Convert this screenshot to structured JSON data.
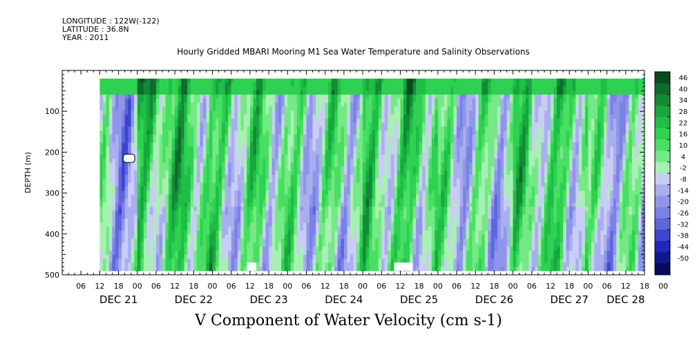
{
  "header": {
    "longitude": "LONGITUDE : 122W(-122)",
    "latitude": "LATITUDE : 36.8N",
    "year": "YEAR : 2011"
  },
  "title": "Hourly Gridded MBARI Mooring M1 Sea Water Temperature and Salinity Observations",
  "footer_title": "V Component of Water Velocity (cm s-1)",
  "chart_data": {
    "type": "heatmap",
    "title": "Hourly Gridded MBARI Mooring M1 Sea Water Temperature and Salinity Observations",
    "variable": "V Component of Water Velocity (cm s-1)",
    "ylabel": "DEPTH (m)",
    "ylim": [
      500,
      0
    ],
    "y_ticks": [
      100,
      200,
      300,
      400,
      500
    ],
    "y_range_data": [
      20,
      490
    ],
    "x_range_hours": [
      "DEC 21 12:00",
      "DEC 28 06:00"
    ],
    "x_hour_ticks": [
      "06",
      "12",
      "18",
      "00",
      "06",
      "12",
      "18",
      "00",
      "06",
      "12",
      "18",
      "00",
      "06",
      "12",
      "18",
      "00",
      "06",
      "12",
      "18",
      "00",
      "06",
      "12",
      "18",
      "00",
      "06",
      "12",
      "18",
      "00",
      "06",
      "12",
      "18",
      "00"
    ],
    "x_day_labels": [
      {
        "label": "DEC 21",
        "hour": 18
      },
      {
        "label": "DEC 22",
        "hour": 42
      },
      {
        "label": "DEC 23",
        "hour": 66
      },
      {
        "label": "DEC 24",
        "hour": 90
      },
      {
        "label": "DEC 25",
        "hour": 114
      },
      {
        "label": "DEC 26",
        "hour": 138
      },
      {
        "label": "DEC 27",
        "hour": 162
      },
      {
        "label": "DEC 28",
        "hour": 180
      }
    ],
    "colorbar_levels": [
      46,
      40,
      34,
      28,
      22,
      16,
      10,
      4,
      -2,
      -8,
      -14,
      -20,
      -26,
      -32,
      -38,
      -44,
      -50
    ],
    "colorbar_colors": [
      "#0a4a1f",
      "#0f6b2c",
      "#138a36",
      "#18a63e",
      "#1fbe47",
      "#2ed152",
      "#49df62",
      "#74e985",
      "#a8f0b3",
      "#c9cdf5",
      "#a9aeef",
      "#8f96ea",
      "#7a82e6",
      "#5e66dd",
      "#3b45cf",
      "#1f27b6",
      "#10168f",
      "#060a5e"
    ],
    "pattern_series": [
      {
        "hour_start": 12,
        "hour_end": 24,
        "mean": -14
      },
      {
        "hour_start": 24,
        "hour_end": 48,
        "mean": 8
      },
      {
        "hour_start": 48,
        "hour_end": 72,
        "mean": 0
      },
      {
        "hour_start": 72,
        "hour_end": 96,
        "mean": -4
      },
      {
        "hour_start": 96,
        "hour_end": 120,
        "mean": 6
      },
      {
        "hour_start": 120,
        "hour_end": 144,
        "mean": -6
      },
      {
        "hour_start": 144,
        "hour_end": 168,
        "mean": 4
      },
      {
        "hour_start": 168,
        "hour_end": 186,
        "mean": -10
      }
    ]
  }
}
